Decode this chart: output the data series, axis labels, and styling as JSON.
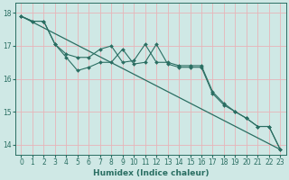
{
  "title": "",
  "xlabel": "Humidex (Indice chaleur)",
  "ylabel": "",
  "bg_color": "#cfe8e5",
  "grid_color": "#e8b4b8",
  "line_color": "#2a6e62",
  "xlim": [
    -0.5,
    23.5
  ],
  "ylim": [
    13.7,
    18.3
  ],
  "yticks": [
    14,
    15,
    16,
    17,
    18
  ],
  "xticks": [
    0,
    1,
    2,
    3,
    4,
    5,
    6,
    7,
    8,
    9,
    10,
    11,
    12,
    13,
    14,
    15,
    16,
    17,
    18,
    19,
    20,
    21,
    22,
    23
  ],
  "line1_x": [
    0,
    1,
    2,
    3,
    4,
    5,
    6,
    7,
    8,
    9,
    10,
    11,
    12,
    13,
    14,
    15,
    16,
    17,
    18,
    19,
    20,
    21,
    22,
    23
  ],
  "line1_y": [
    17.9,
    17.75,
    17.75,
    17.05,
    16.65,
    16.25,
    16.35,
    16.5,
    16.5,
    16.9,
    16.45,
    16.5,
    17.05,
    16.45,
    16.35,
    16.35,
    16.35,
    15.55,
    15.2,
    15.0,
    14.8,
    14.55,
    14.55,
    13.85
  ],
  "line2_x": [
    0,
    1,
    2,
    3,
    4,
    5,
    6,
    7,
    8,
    9,
    10,
    11,
    12,
    13,
    14,
    15,
    16,
    17,
    18,
    19,
    20,
    21,
    22,
    23
  ],
  "line2_y": [
    17.9,
    17.75,
    17.75,
    17.05,
    16.75,
    16.65,
    16.65,
    16.9,
    17.0,
    16.5,
    16.55,
    17.05,
    16.5,
    16.5,
    16.4,
    16.4,
    16.4,
    15.6,
    15.25,
    15.0,
    14.8,
    14.55,
    14.55,
    13.85
  ],
  "line3_x": [
    0,
    23
  ],
  "line3_y": [
    17.9,
    13.85
  ]
}
